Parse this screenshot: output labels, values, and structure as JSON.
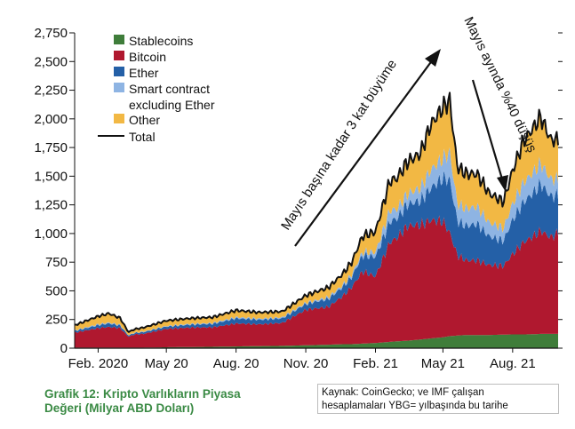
{
  "chart_data": {
    "type": "area",
    "stacked": true,
    "xlim": [
      "2020-01-01",
      "2021-09-30"
    ],
    "ylim": [
      0,
      2750
    ],
    "yticks": [
      0,
      250,
      500,
      750,
      1000,
      1250,
      1500,
      1750,
      2000,
      2250,
      2500,
      2750
    ],
    "ytick_labels": [
      "0",
      "250",
      "500",
      "750",
      "1,000",
      "1,250",
      "1,500",
      "1,750",
      "2,000",
      "2,250",
      "2,500",
      "2,750"
    ],
    "xticks": [
      {
        "date": "2020-02-01",
        "label": "Feb. 2020"
      },
      {
        "date": "2020-05-01",
        "label": "May 20"
      },
      {
        "date": "2020-08-01",
        "label": "Aug. 20"
      },
      {
        "date": "2020-11-01",
        "label": "Nov. 20"
      },
      {
        "date": "2021-02-01",
        "label": "Feb. 21"
      },
      {
        "date": "2021-05-01",
        "label": "May 21"
      },
      {
        "date": "2021-08-01",
        "label": "Aug. 21"
      }
    ],
    "x": [
      "2020-01-01",
      "2020-02-01",
      "2020-02-15",
      "2020-03-01",
      "2020-03-12",
      "2020-03-20",
      "2020-04-01",
      "2020-05-01",
      "2020-06-01",
      "2020-07-01",
      "2020-08-01",
      "2020-09-01",
      "2020-10-01",
      "2020-11-01",
      "2020-12-01",
      "2020-12-20",
      "2021-01-01",
      "2021-01-15",
      "2021-02-01",
      "2021-02-20",
      "2021-03-01",
      "2021-03-15",
      "2021-04-01",
      "2021-04-15",
      "2021-05-01",
      "2021-05-10",
      "2021-05-20",
      "2021-06-01",
      "2021-06-15",
      "2021-07-01",
      "2021-07-20",
      "2021-08-01",
      "2021-08-15",
      "2021-09-01",
      "2021-09-07",
      "2021-09-20",
      "2021-09-30"
    ],
    "series": [
      {
        "name": "Stablecoins",
        "color": "#3f7d3a",
        "values": [
          5,
          5,
          5,
          5,
          5,
          5,
          5,
          8,
          10,
          12,
          15,
          18,
          20,
          25,
          30,
          35,
          35,
          40,
          45,
          55,
          60,
          65,
          75,
          85,
          95,
          105,
          110,
          115,
          115,
          115,
          118,
          120,
          120,
          122,
          125,
          125,
          125
        ]
      },
      {
        "name": "Bitcoin",
        "color": "#b0182f",
        "values": [
          130,
          170,
          180,
          170,
          95,
          115,
          120,
          160,
          170,
          170,
          200,
          190,
          200,
          310,
          330,
          420,
          500,
          630,
          580,
          870,
          900,
          1000,
          1000,
          1030,
          1010,
          900,
          700,
          650,
          650,
          610,
          600,
          700,
          800,
          870,
          900,
          840,
          880
        ]
      },
      {
        "name": "Ether",
        "color": "#2460a7",
        "values": [
          15,
          25,
          30,
          22,
          10,
          12,
          15,
          20,
          25,
          30,
          45,
          40,
          40,
          50,
          70,
          80,
          90,
          140,
          170,
          180,
          170,
          190,
          210,
          280,
          380,
          460,
          300,
          300,
          320,
          250,
          220,
          300,
          350,
          390,
          410,
          360,
          330
        ]
      },
      {
        "name": "Smart contract excluding Ether",
        "color": "#8eb4e3",
        "values": [
          5,
          8,
          8,
          6,
          3,
          3,
          4,
          5,
          6,
          7,
          10,
          9,
          9,
          10,
          15,
          17,
          20,
          30,
          40,
          100,
          80,
          90,
          110,
          160,
          170,
          240,
          150,
          150,
          150,
          120,
          110,
          140,
          170,
          180,
          180,
          150,
          140
        ]
      },
      {
        "name": "Other",
        "color": "#f2b844",
        "values": [
          45,
          70,
          80,
          60,
          27,
          30,
          36,
          47,
          49,
          51,
          60,
          55,
          51,
          65,
          85,
          98,
          110,
          140,
          180,
          255,
          270,
          280,
          300,
          395,
          445,
          455,
          320,
          305,
          285,
          255,
          230,
          290,
          360,
          395,
          405,
          345,
          340
        ]
      }
    ],
    "total": {
      "name": "Total",
      "color": "#111111",
      "values": [
        200,
        278,
        303,
        263,
        140,
        165,
        180,
        240,
        260,
        269,
        330,
        312,
        320,
        460,
        530,
        650,
        755,
        980,
        1015,
        1460,
        1480,
        1625,
        1695,
        1950,
        2100,
        2160,
        1580,
        1520,
        1520,
        1350,
        1278,
        1550,
        1800,
        1957,
        2020,
        1820,
        1815
      ]
    },
    "legend": [
      "Stablecoins",
      "Bitcoin",
      "Ether",
      "Smart contract excluding Ether",
      "Other",
      "Total"
    ],
    "legend_lines": [
      [
        "Stablecoins"
      ],
      [
        "Bitcoin"
      ],
      [
        "Ether"
      ],
      [
        "Smart contract",
        "excluding Ether"
      ],
      [
        "Other"
      ],
      [
        "Total"
      ]
    ],
    "legend_position": "top-left",
    "grid": false,
    "annotations": [
      "Mayıs başına kadar 3 kat büyüme",
      "Mayıs ayında %40 düşüş"
    ]
  },
  "caption": {
    "line1": "Grafik 12: Kripto Varlıkların Piyasa",
    "line2": "Değeri (Milyar ABD Doları)"
  },
  "source": {
    "line1": "Kaynak: CoinGecko; ve IMF çalışan",
    "line2": "hesaplamaları YBG= yılbaşında bu tarihe"
  }
}
